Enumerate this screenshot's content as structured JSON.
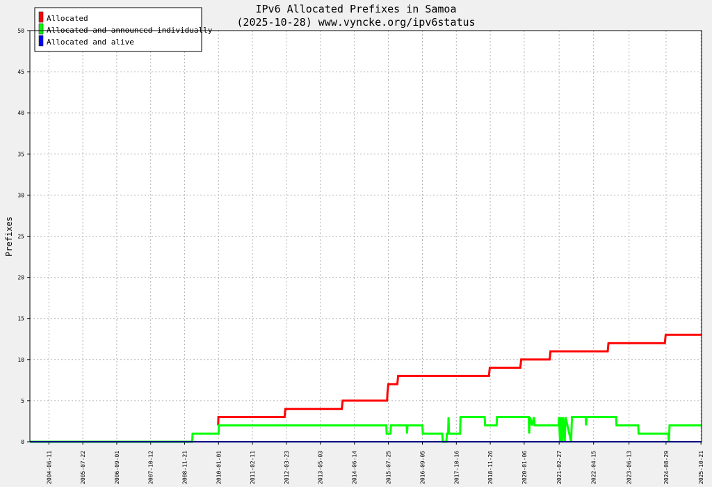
{
  "chart_data": {
    "type": "line",
    "title": "IPv6 Allocated Prefixes in Samoa",
    "subtitle": "(2025-10-28) www.vyncke.org/ipv6status",
    "ylabel": "Prefixes",
    "xlabel": "",
    "ylim": [
      0,
      50
    ],
    "yticks": [
      0,
      5,
      10,
      15,
      20,
      25,
      30,
      35,
      40,
      45,
      50
    ],
    "xlim": [
      "2003-10-28",
      "2025-10-28"
    ],
    "xticks": [
      "2004-06-11",
      "2005-07-22",
      "2006-09-01",
      "2007-10-12",
      "2008-11-21",
      "2010-01-01",
      "2011-02-11",
      "2012-03-23",
      "2013-05-03",
      "2014-06-14",
      "2015-07-25",
      "2016-09-05",
      "2017-10-16",
      "2018-11-26",
      "2020-01-06",
      "2021-02-27",
      "2022-04-15",
      "2023-06-13",
      "2024-08-29",
      "2025-10-21"
    ],
    "grid": true,
    "legend_position": "top-left",
    "series": [
      {
        "name": "Allocated",
        "color": "#ff0000",
        "points": [
          [
            "2009-12-28",
            2
          ],
          [
            "2009-12-30",
            3
          ],
          [
            "2012-03-01",
            3
          ],
          [
            "2012-03-10",
            4
          ],
          [
            "2014-01-15",
            4
          ],
          [
            "2014-01-25",
            5
          ],
          [
            "2015-07-10",
            5
          ],
          [
            "2015-07-15",
            6
          ],
          [
            "2015-07-25",
            7
          ],
          [
            "2015-11-10",
            7
          ],
          [
            "2015-11-20",
            8
          ],
          [
            "2018-11-10",
            8
          ],
          [
            "2018-11-20",
            9
          ],
          [
            "2019-11-20",
            9
          ],
          [
            "2019-12-01",
            10
          ],
          [
            "2020-11-05",
            10
          ],
          [
            "2020-11-15",
            11
          ],
          [
            "2022-10-01",
            11
          ],
          [
            "2022-10-10",
            12
          ],
          [
            "2024-08-15",
            12
          ],
          [
            "2024-08-25",
            13
          ],
          [
            "2025-10-28",
            13
          ]
        ]
      },
      {
        "name": "Allocated and announced individually",
        "color": "#00ff00",
        "points": [
          [
            "2003-10-28",
            0
          ],
          [
            "2009-02-20",
            0
          ],
          [
            "2009-02-25",
            1
          ],
          [
            "2010-01-01",
            1
          ],
          [
            "2010-01-05",
            2
          ],
          [
            "2015-07-01",
            2
          ],
          [
            "2015-07-05",
            1
          ],
          [
            "2015-08-20",
            1
          ],
          [
            "2015-08-25",
            2
          ],
          [
            "2016-03-01",
            2
          ],
          [
            "2016-03-05",
            1
          ],
          [
            "2016-03-10",
            2
          ],
          [
            "2016-09-05",
            2
          ],
          [
            "2016-09-10",
            1
          ],
          [
            "2017-05-01",
            1
          ],
          [
            "2017-05-05",
            0
          ],
          [
            "2017-06-20",
            0
          ],
          [
            "2017-06-25",
            1
          ],
          [
            "2017-07-10",
            1
          ],
          [
            "2017-07-15",
            3
          ],
          [
            "2017-07-20",
            1
          ],
          [
            "2017-12-01",
            1
          ],
          [
            "2017-12-05",
            3
          ],
          [
            "2018-09-20",
            3
          ],
          [
            "2018-09-25",
            2
          ],
          [
            "2019-02-10",
            2
          ],
          [
            "2019-02-15",
            3
          ],
          [
            "2020-03-01",
            3
          ],
          [
            "2020-03-05",
            1
          ],
          [
            "2020-03-15",
            3
          ],
          [
            "2020-04-10",
            2
          ],
          [
            "2020-05-01",
            3
          ],
          [
            "2020-05-10",
            2
          ],
          [
            "2021-02-20",
            2
          ],
          [
            "2021-02-25",
            3
          ],
          [
            "2021-03-10",
            0
          ],
          [
            "2021-03-20",
            3
          ],
          [
            "2021-04-05",
            0
          ],
          [
            "2021-04-15",
            3
          ],
          [
            "2021-05-05",
            0
          ],
          [
            "2021-05-15",
            3
          ],
          [
            "2021-07-20",
            0
          ],
          [
            "2021-07-30",
            3
          ],
          [
            "2022-01-10",
            3
          ],
          [
            "2022-01-15",
            2
          ],
          [
            "2022-01-20",
            3
          ],
          [
            "2023-01-10",
            3
          ],
          [
            "2023-01-15",
            2
          ],
          [
            "2023-10-01",
            2
          ],
          [
            "2023-10-05",
            1
          ],
          [
            "2024-09-25",
            1
          ],
          [
            "2024-10-01",
            0
          ],
          [
            "2024-10-10",
            2
          ],
          [
            "2025-10-28",
            2
          ]
        ]
      },
      {
        "name": "Allocated and alive",
        "color": "#0000ff",
        "points": [
          [
            "2003-10-28",
            0
          ],
          [
            "2025-10-28",
            0
          ]
        ]
      }
    ]
  }
}
